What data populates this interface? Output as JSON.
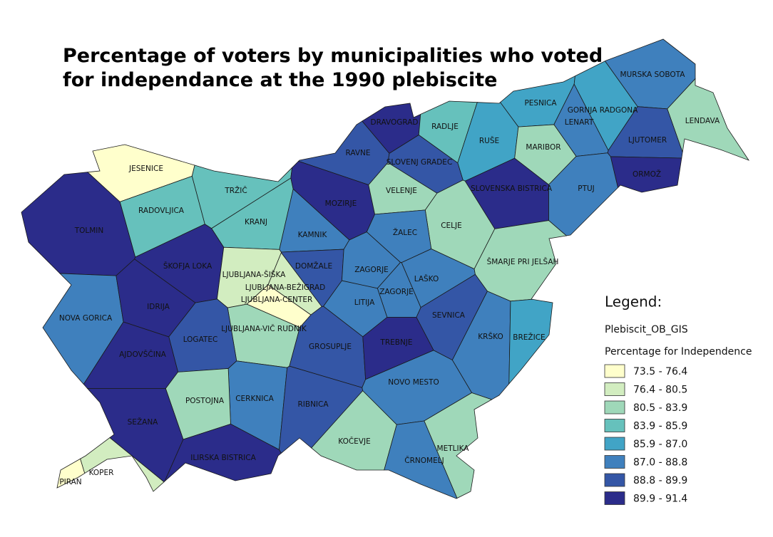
{
  "title": [
    "Percentage of voters by municipalities who voted",
    "for independance at the 1990 plebiscite"
  ],
  "legend": {
    "heading": "Legend:",
    "layer": "Plebiscit_OB_GIS",
    "field": "Percentage for Independence",
    "classes": [
      {
        "label": "73.5 - 76.4",
        "color": "#ffffcc"
      },
      {
        "label": "76.4 - 80.5",
        "color": "#d2edc0"
      },
      {
        "label": "80.5 - 83.9",
        "color": "#9fd8b9"
      },
      {
        "label": "83.9 - 85.9",
        "color": "#66c1bc"
      },
      {
        "label": "85.9 - 87.0",
        "color": "#41a4c6"
      },
      {
        "label": "87.0 - 88.8",
        "color": "#3f80bd"
      },
      {
        "label": "88.8 - 89.9",
        "color": "#3456a6"
      },
      {
        "label": "89.9 - 91.4",
        "color": "#2b2c8a"
      }
    ]
  },
  "municipalities": [
    {
      "name": "MURSKA SOBOTA",
      "color": "#3f80bd"
    },
    {
      "name": "LENDAVA",
      "color": "#9fd8b9"
    },
    {
      "name": "PESNICA",
      "color": "#41a4c6"
    },
    {
      "name": "GORNJA RADGONA",
      "color": "#41a4c6"
    },
    {
      "name": "LENART",
      "color": "#3f80bd"
    },
    {
      "name": "LJUTOMER",
      "color": "#3456a6"
    },
    {
      "name": "ORMOŽ",
      "color": "#2b2c8a"
    },
    {
      "name": "DRAVOGRAD",
      "color": "#2b2c8a"
    },
    {
      "name": "RADLJE",
      "color": "#66c1bc"
    },
    {
      "name": "RUŠE",
      "color": "#41a4c6"
    },
    {
      "name": "MARIBOR",
      "color": "#9fd8b9"
    },
    {
      "name": "RAVNE",
      "color": "#3456a6"
    },
    {
      "name": "SLOVENJ GRADEC",
      "color": "#3456a6"
    },
    {
      "name": "SLOVENSKA BISTRICA",
      "color": "#2b2c8a"
    },
    {
      "name": "PTUJ",
      "color": "#3f80bd"
    },
    {
      "name": "JESENICE",
      "color": "#ffffcc"
    },
    {
      "name": "TRŽIČ",
      "color": "#66c1bc"
    },
    {
      "name": "RADOVLJICA",
      "color": "#66c1bc"
    },
    {
      "name": "KRANJ",
      "color": "#66c1bc"
    },
    {
      "name": "MOZIRJE",
      "color": "#2b2c8a"
    },
    {
      "name": "VELENJE",
      "color": "#9fd8b9"
    },
    {
      "name": "CELJE",
      "color": "#9fd8b9"
    },
    {
      "name": "TOLMIN",
      "color": "#2b2c8a"
    },
    {
      "name": "KAMNIK",
      "color": "#3f80bd"
    },
    {
      "name": "ŽALEC",
      "color": "#3f80bd"
    },
    {
      "name": "ŠKOFJA LOKA",
      "color": "#2b2c8a"
    },
    {
      "name": "DOMŽALE",
      "color": "#3456a6"
    },
    {
      "name": "LJUBLJANA-ŠIŠKA",
      "color": "#d2edc0"
    },
    {
      "name": "LJUBLJANA-BEŽIGRAD",
      "color": "#d2edc0"
    },
    {
      "name": "LJUBLJANA-CENTER",
      "color": "#ffffcc"
    },
    {
      "name": "ZAGORJE",
      "color": "#3f80bd"
    },
    {
      "name": "ZAGORJE",
      "color": "#3f80bd"
    },
    {
      "name": "LAŠKO",
      "color": "#3f80bd"
    },
    {
      "name": "ŠMARJE PRI JELŠAH",
      "color": "#9fd8b9"
    },
    {
      "name": "NOVA GORICA",
      "color": "#3f80bd"
    },
    {
      "name": "IDRIJA",
      "color": "#2b2c8a"
    },
    {
      "name": "LJUBLJANA-VIČ RUDNIK",
      "color": "#9fd8b9"
    },
    {
      "name": "LITIJA",
      "color": "#3f80bd"
    },
    {
      "name": "SEVNICA",
      "color": "#3456a6"
    },
    {
      "name": "LOGATEC",
      "color": "#3456a6"
    },
    {
      "name": "GROSUPLJE",
      "color": "#3456a6"
    },
    {
      "name": "TREBNJE",
      "color": "#2b2c8a"
    },
    {
      "name": "KRŠKO",
      "color": "#3f80bd"
    },
    {
      "name": "BREŽICE",
      "color": "#41a4c6"
    },
    {
      "name": "AJDOVŠČINA",
      "color": "#2b2c8a"
    },
    {
      "name": "NOVO MESTO",
      "color": "#3f80bd"
    },
    {
      "name": "CERKNICA",
      "color": "#3f80bd"
    },
    {
      "name": "POSTOJNA",
      "color": "#9fd8b9"
    },
    {
      "name": "RIBNICA",
      "color": "#3456a6"
    },
    {
      "name": "SEŽANA",
      "color": "#2b2c8a"
    },
    {
      "name": "METLIKA",
      "color": "#9fd8b9"
    },
    {
      "name": "KOČEVJE",
      "color": "#9fd8b9"
    },
    {
      "name": "ČRNOMELJ",
      "color": "#3f80bd"
    },
    {
      "name": "ILIRSKA BISTRICA",
      "color": "#2b2c8a"
    },
    {
      "name": "KOPER",
      "color": "#d2edc0"
    },
    {
      "name": "PIRAN",
      "color": "#ffffcc"
    }
  ]
}
